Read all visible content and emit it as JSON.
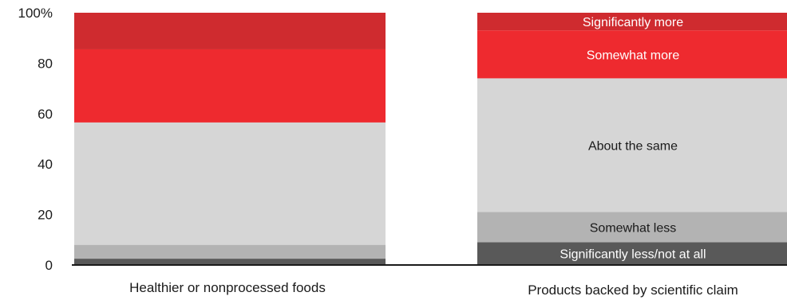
{
  "chart_data": {
    "type": "bar",
    "stacked": true,
    "categories": [
      "Healthier or nonprocessed foods",
      "Products backed by scientific claim"
    ],
    "y_ticks": [
      "0",
      "20",
      "40",
      "60",
      "80",
      "100%"
    ],
    "y_tick_values": [
      0,
      20,
      40,
      60,
      80,
      100
    ],
    "ylim": [
      0,
      100
    ],
    "grid": false,
    "series": [
      {
        "name": "Significantly less/not at all",
        "values": [
          2.5,
          9
        ],
        "color": "#595959",
        "label_color": "#ffffff"
      },
      {
        "name": "Somewhat less",
        "values": [
          5.5,
          12
        ],
        "color": "#b3b3b3",
        "label_color": "#1a1a1a"
      },
      {
        "name": "About the same",
        "values": [
          48.5,
          53
        ],
        "color": "#d6d6d6",
        "label_color": "#1a1a1a"
      },
      {
        "name": "Somewhat more",
        "values": [
          29,
          19
        ],
        "color": "#ee2a2f",
        "label_color": "#ffffff"
      },
      {
        "name": "Significantly more",
        "values": [
          14.5,
          7
        ],
        "color": "#cf2b2f",
        "label_color": "#ffffff"
      }
    ],
    "labeled_category_index": 1
  }
}
